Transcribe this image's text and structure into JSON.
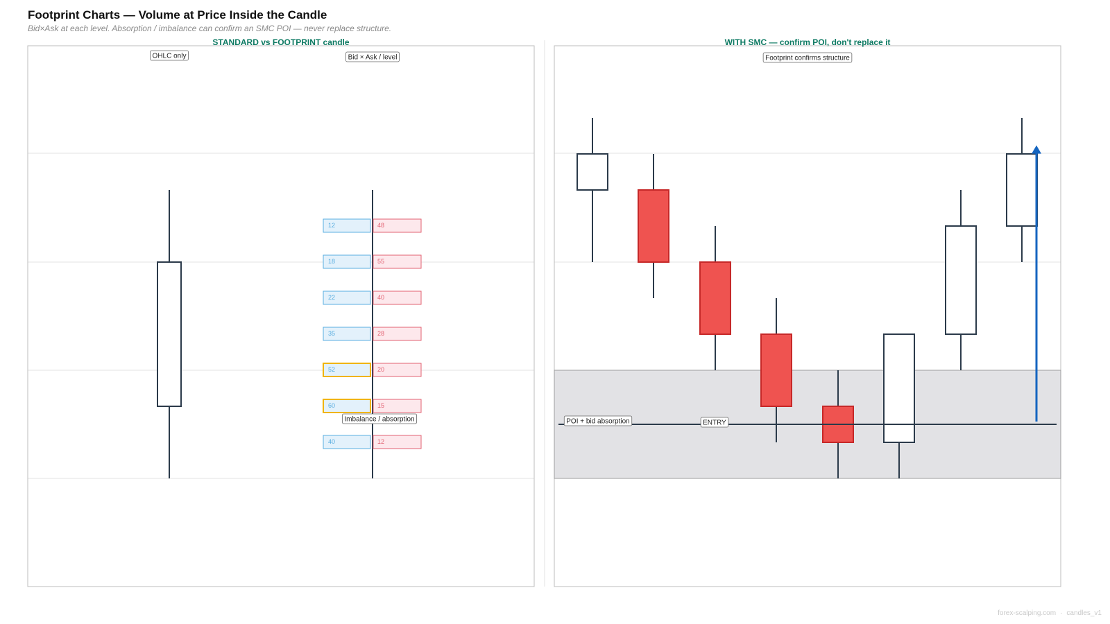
{
  "page": {
    "title": "Footprint Charts — Volume at Price Inside the Candle",
    "subtitle": "Bid×Ask at each level. Absorption / imbalance can confirm an SMC POI — never replace structure.",
    "footer_site": "forex-scalping.com",
    "footer_sep": "·",
    "footer_tag": "candles_v1"
  },
  "colors": {
    "bull_body": "#ffffff",
    "candle_outline": "#2b3a4a",
    "bear_body": "#ef5350",
    "bear_outline": "#c62828",
    "bid_fill": "#e3f1fb",
    "bid_stroke": "#5aaee0",
    "bid_text": "#5aaee0",
    "ask_fill": "#fde8ec",
    "ask_stroke": "#e26272",
    "ask_text": "#e26272",
    "imbalance_stroke": "#f0b400",
    "poi_zone": "#e2e2e5",
    "entry_line": "#2b3a4a",
    "target_arrow": "#1565c0",
    "panel_title": "#0e7a63",
    "grid": "#e3e3e3"
  },
  "chart_data": [
    {
      "type": "candlestick",
      "title": "STANDARD vs FOOTPRINT candle",
      "grid": true,
      "candles": [
        {
          "label": "OHLC only",
          "open": 2.0,
          "high": 8.0,
          "low": 0.0,
          "close": 6.0
        }
      ],
      "footprint": {
        "label": "Bid × Ask / level",
        "annotation": "Imbalance / absorption",
        "levels": [
          {
            "bid": 12,
            "ask": 48,
            "imbalance": false
          },
          {
            "bid": 18,
            "ask": 55,
            "imbalance": false
          },
          {
            "bid": 22,
            "ask": 40,
            "imbalance": false
          },
          {
            "bid": 35,
            "ask": 28,
            "imbalance": false
          },
          {
            "bid": 52,
            "ask": 20,
            "imbalance": true
          },
          {
            "bid": 60,
            "ask": 15,
            "imbalance": true
          },
          {
            "bid": 40,
            "ask": 12,
            "imbalance": false
          }
        ]
      }
    },
    {
      "type": "candlestick",
      "title": "WITH SMC — confirm POI, don't replace it",
      "grid": true,
      "annotation": "Footprint confirms structure",
      "candles": [
        {
          "open": 8.0,
          "high": 10.0,
          "low": 6.0,
          "close": 9.0
        },
        {
          "open": 8.0,
          "high": 9.0,
          "low": 5.0,
          "close": 6.0
        },
        {
          "open": 6.0,
          "high": 7.0,
          "low": 3.0,
          "close": 4.0
        },
        {
          "open": 4.0,
          "high": 5.0,
          "low": 1.0,
          "close": 2.0
        },
        {
          "open": 2.0,
          "high": 3.0,
          "low": 0.0,
          "close": 1.0
        },
        {
          "open": 1.0,
          "high": 4.0,
          "low": 0.0,
          "close": 4.0
        },
        {
          "open": 4.0,
          "high": 8.0,
          "low": 3.0,
          "close": 7.0
        },
        {
          "open": 7.0,
          "high": 10.0,
          "low": 6.0,
          "close": 9.0
        }
      ],
      "poi_zone": {
        "from": 0.0,
        "to": 3.0,
        "label": "POI + bid absorption"
      },
      "entry": {
        "price": 1.5,
        "label": "ENTRY"
      },
      "target": {
        "from": 1.5,
        "to": 9.2
      }
    }
  ]
}
